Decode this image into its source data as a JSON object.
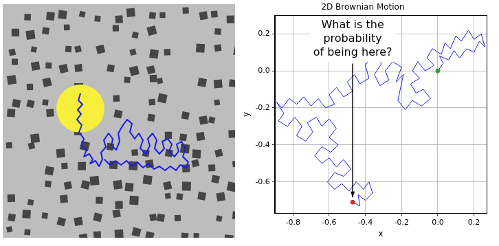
{
  "chart_data": {
    "type": "line",
    "title": "2D Brownian Motion",
    "x_label": "x",
    "y_label": "y",
    "xlim": [
      -0.9,
      0.27
    ],
    "ylim": [
      -0.77,
      0.3
    ],
    "xticks": [
      -0.8,
      -0.6,
      -0.4,
      -0.2,
      {
        "value": 0,
        "label": "0.0"
      },
      0.2
    ],
    "yticks": [
      -0.6,
      -0.4,
      -0.2,
      {
        "value": 0,
        "label": "0.0"
      },
      0.2
    ],
    "grid": true,
    "series": [
      {
        "color": "#1f1fe0",
        "marker": "none",
        "line_style": "solid",
        "x": [
          0,
          0.03,
          0.01,
          0.06,
          0.09,
          0.12,
          0.16,
          0.2,
          0.23,
          0.26,
          0.24,
          0.2,
          0.17,
          0.13,
          0.1,
          0.07,
          0.04,
          0.02,
          -0.03,
          -0.06,
          -0.02,
          -0.07,
          -0.11,
          -0.14,
          -0.1,
          -0.15,
          -0.12,
          -0.08,
          -0.04,
          -0.09,
          -0.14,
          -0.18,
          -0.22,
          -0.19,
          -0.23,
          -0.2,
          -0.25,
          -0.29,
          -0.27,
          -0.32,
          -0.35,
          -0.31,
          -0.36,
          -0.4,
          -0.38,
          -0.43,
          -0.46,
          -0.5,
          -0.47,
          -0.52,
          -0.56,
          -0.6,
          -0.57,
          -0.62,
          -0.66,
          -0.7,
          -0.74,
          -0.78,
          -0.82,
          -0.86,
          -0.89,
          -0.85,
          -0.88,
          -0.83,
          -0.79,
          -0.75,
          -0.78,
          -0.73,
          -0.69,
          -0.72,
          -0.67,
          -0.64,
          -0.6,
          -0.56,
          -0.6,
          -0.55,
          -0.59,
          -0.64,
          -0.68,
          -0.64,
          -0.6,
          -0.56,
          -0.52,
          -0.48,
          -0.52,
          -0.57,
          -0.61,
          -0.57,
          -0.53,
          -0.49,
          -0.45,
          -0.41,
          -0.38,
          -0.36,
          -0.4,
          -0.44,
          -0.43,
          -0.47
        ],
        "y": [
          0,
          0.04,
          0.08,
          0.06,
          0.11,
          0.07,
          0.12,
          0.1,
          0.16,
          0.13,
          0.2,
          0.17,
          0.22,
          0.16,
          0.19,
          0.12,
          0.15,
          0.09,
          0.12,
          0.07,
          0.03,
          0,
          0.05,
          0,
          -0.04,
          -0.07,
          -0.12,
          -0.1,
          -0.15,
          -0.19,
          -0.16,
          -0.21,
          -0.16,
          -0.02,
          -0.06,
          0.02,
          0.05,
          0,
          -0.05,
          -0.08,
          -0.02,
          0.04,
          0.08,
          0.03,
          -0.04,
          -0.07,
          -0.02,
          -0.06,
          -0.11,
          -0.14,
          -0.09,
          -0.13,
          -0.18,
          -0.2,
          -0.15,
          -0.19,
          -0.14,
          -0.18,
          -0.15,
          -0.2,
          -0.17,
          -0.23,
          -0.27,
          -0.3,
          -0.25,
          -0.3,
          -0.35,
          -0.38,
          -0.33,
          -0.28,
          -0.25,
          -0.3,
          -0.26,
          -0.31,
          -0.36,
          -0.4,
          -0.44,
          -0.41,
          -0.46,
          -0.5,
          -0.47,
          -0.52,
          -0.48,
          -0.53,
          -0.57,
          -0.55,
          -0.6,
          -0.64,
          -0.61,
          -0.65,
          -0.6,
          -0.64,
          -0.6,
          -0.66,
          -0.7,
          -0.67,
          -0.73,
          -0.71
        ]
      }
    ],
    "points": [
      {
        "x": 0,
        "y": 0,
        "color": "#2ca02c"
      },
      {
        "x": -0.47,
        "y": -0.71,
        "color": "#d62728"
      }
    ],
    "annotation": {
      "text": "What is the probability of being here?",
      "x": -0.47,
      "y": -0.71
    }
  }
}
